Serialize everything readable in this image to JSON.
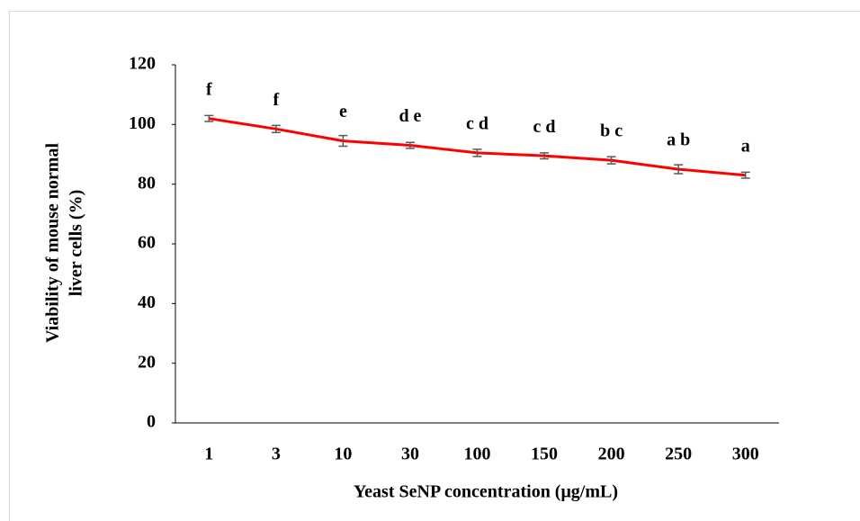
{
  "chart_data": {
    "type": "line",
    "y_label": [
      "Viability of mouse normal",
      "liver cells  (%)"
    ],
    "x_label": "Yeast SeNP concentration (μg/mL)",
    "categories": [
      "1",
      "3",
      "10",
      "30",
      "100",
      "150",
      "200",
      "250",
      "300"
    ],
    "values": [
      102,
      98.5,
      94.5,
      93,
      90.5,
      89.5,
      88,
      85,
      83
    ],
    "errors": [
      1,
      1.2,
      1.8,
      1,
      1.2,
      1,
      1.2,
      1.5,
      1
    ],
    "annotations": [
      "f",
      "f",
      "e",
      "d e",
      "c d",
      "c d",
      "b c",
      "a b",
      "a"
    ],
    "color": "#ff0000",
    "ylim": [
      0,
      120
    ],
    "yticks": [
      0,
      20,
      40,
      60,
      80,
      100,
      120
    ]
  }
}
